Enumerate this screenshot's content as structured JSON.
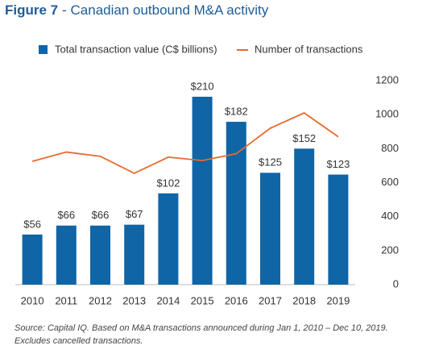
{
  "chart_data": {
    "type": "bar_line",
    "figure_label": "Figure 7",
    "title": "- Canadian outbound M&A activity",
    "categories": [
      "2010",
      "2011",
      "2012",
      "2013",
      "2014",
      "2015",
      "2016",
      "2017",
      "2018",
      "2019"
    ],
    "series": [
      {
        "name": "Total transaction value (C$ billions)",
        "color": "#0f65a6",
        "type": "bar",
        "values": [
          56,
          66,
          66,
          67,
          102,
          210,
          182,
          125,
          152,
          123
        ],
        "value_labels": [
          "$56",
          "$66",
          "$66",
          "$67",
          "$102",
          "$210",
          "$182",
          "$125",
          "$152",
          "$123"
        ]
      },
      {
        "name": "Number of transactions",
        "color": "#e8692d",
        "type": "line",
        "axis": "y2",
        "values": [
          725,
          780,
          755,
          655,
          750,
          730,
          770,
          920,
          1010,
          870
        ]
      }
    ],
    "ylim": [
      0,
      228
    ],
    "y2lim": [
      0,
      1200
    ],
    "y2ticks": [
      0,
      200,
      400,
      600,
      800,
      1000,
      1200
    ],
    "notes": [
      "Source: Capital IQ. Based on M&A transactions announced during Jan 1, 2010 – Dec 10, 2019.",
      "Excludes cancelled transactions."
    ]
  }
}
